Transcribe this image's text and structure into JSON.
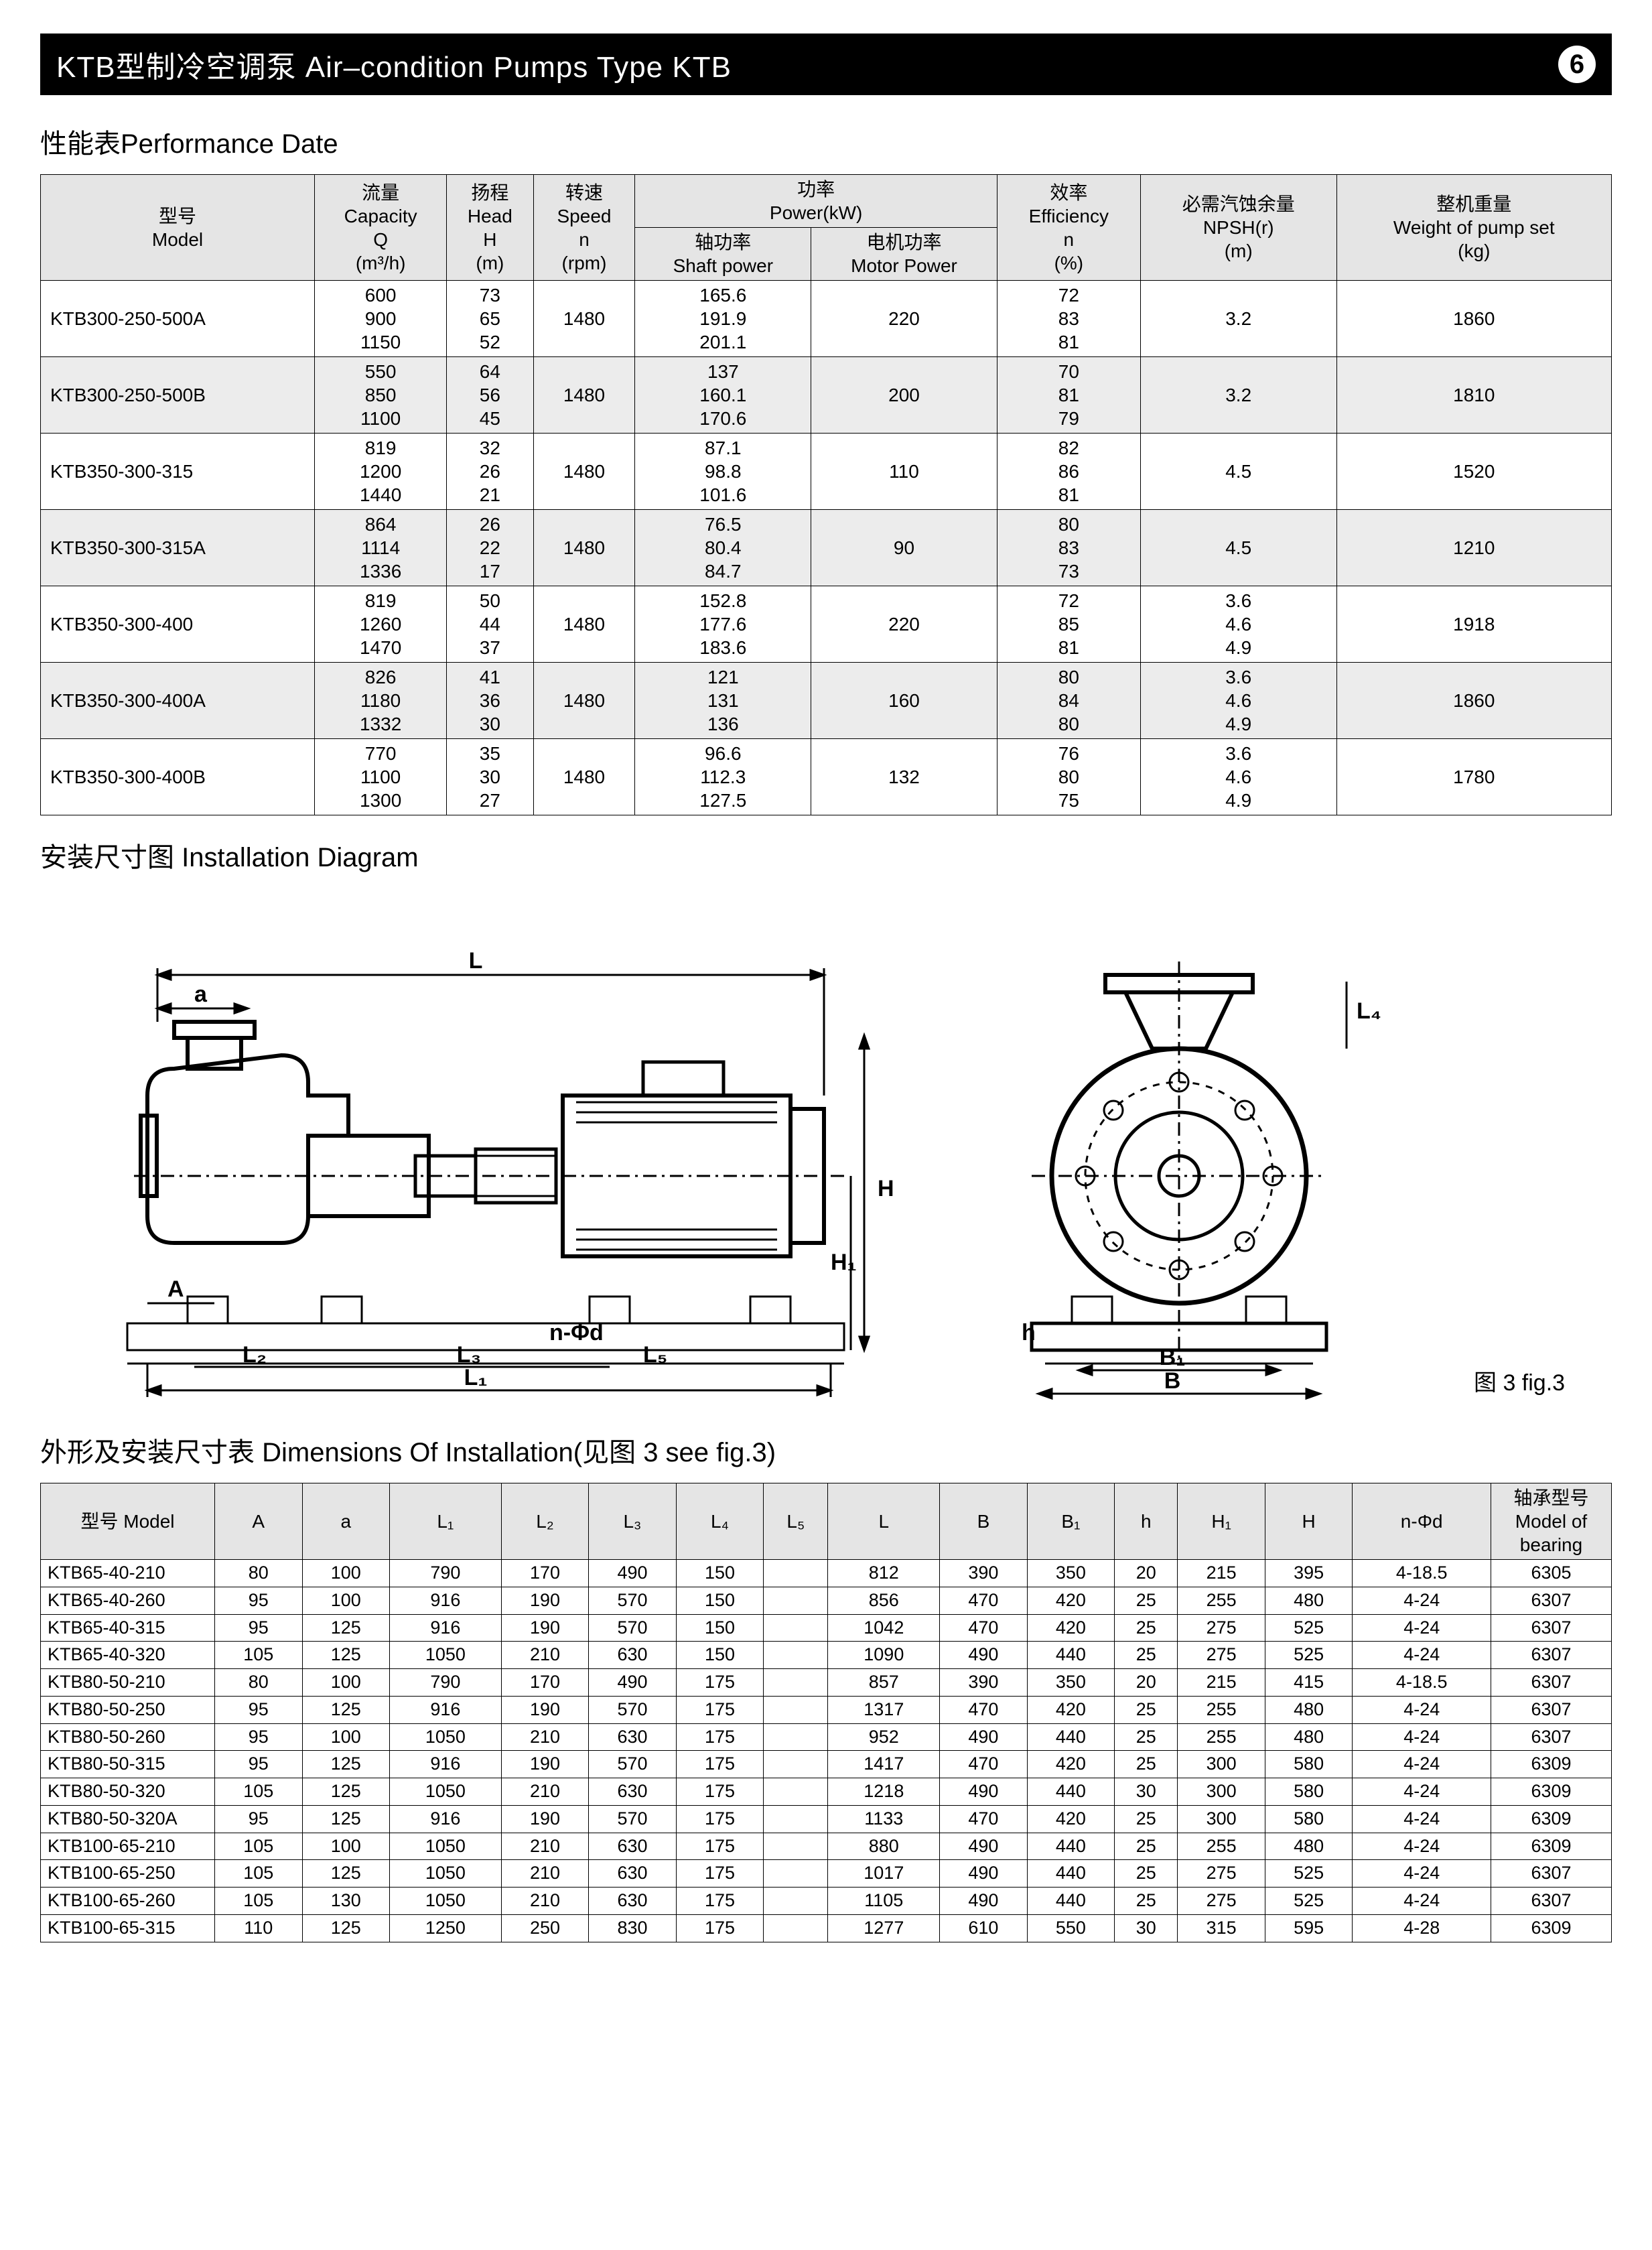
{
  "header": {
    "title": "KTB型制冷空调泵 Air–condition Pumps Type KTB",
    "page_number": "6"
  },
  "sections": {
    "performance_title": "性能表Performance Date",
    "diagram_title": "安装尺寸图 Installation Diagram",
    "dimensions_title": "外形及安装尺寸表 Dimensions Of Installation(见图 3 see fig.3)",
    "fig_caption": "图 3 fig.3"
  },
  "performance_table": {
    "headers": {
      "model": "型号\nModel",
      "capacity": "流量\nCapacity\nQ\n(m³/h)",
      "head": "扬程\nHead\nH\n(m)",
      "speed": "转速\nSpeed\nn\n(rpm)",
      "power": "功率\nPower(kW)",
      "shaft_power": "轴功率\nShaft power",
      "motor_power": "电机功率\nMotor Power",
      "efficiency": "效率\nEfficiency\nn\n(%)",
      "npsh": "必需汽蚀余量\nNPSH(r)\n(m)",
      "weight": "整机重量\nWeight of pump set\n(kg)"
    },
    "rows": [
      {
        "model": "KTB300-250-500A",
        "capacity": "600\n900\n1150",
        "head": "73\n65\n52",
        "speed": "1480",
        "shaft": "165.6\n191.9\n201.1",
        "motor": "220",
        "eff": "72\n83\n81",
        "npsh": "3.2",
        "weight": "1860"
      },
      {
        "model": "KTB300-250-500B",
        "capacity": "550\n850\n1100",
        "head": "64\n56\n45",
        "speed": "1480",
        "shaft": "137\n160.1\n170.6",
        "motor": "200",
        "eff": "70\n81\n79",
        "npsh": "3.2",
        "weight": "1810"
      },
      {
        "model": "KTB350-300-315",
        "capacity": "819\n1200\n1440",
        "head": "32\n26\n21",
        "speed": "1480",
        "shaft": "87.1\n98.8\n101.6",
        "motor": "110",
        "eff": "82\n86\n81",
        "npsh": "4.5",
        "weight": "1520"
      },
      {
        "model": "KTB350-300-315A",
        "capacity": "864\n1114\n1336",
        "head": "26\n22\n17",
        "speed": "1480",
        "shaft": "76.5\n80.4\n84.7",
        "motor": "90",
        "eff": "80\n83\n73",
        "npsh": "4.5",
        "weight": "1210"
      },
      {
        "model": "KTB350-300-400",
        "capacity": "819\n1260\n1470",
        "head": "50\n44\n37",
        "speed": "1480",
        "shaft": "152.8\n177.6\n183.6",
        "motor": "220",
        "eff": "72\n85\n81",
        "npsh": "3.6\n4.6\n4.9",
        "weight": "1918"
      },
      {
        "model": "KTB350-300-400A",
        "capacity": "826\n1180\n1332",
        "head": "41\n36\n30",
        "speed": "1480",
        "shaft": "121\n131\n136",
        "motor": "160",
        "eff": "80\n84\n80",
        "npsh": "3.6\n4.6\n4.9",
        "weight": "1860"
      },
      {
        "model": "KTB350-300-400B",
        "capacity": "770\n1100\n1300",
        "head": "35\n30\n27",
        "speed": "1480",
        "shaft": "96.6\n112.3\n127.5",
        "motor": "132",
        "eff": "76\n80\n75",
        "npsh": "3.6\n4.6\n4.9",
        "weight": "1780"
      }
    ]
  },
  "diagram": {
    "labels": {
      "L": "L",
      "a": "a",
      "A": "A",
      "L1": "L₁",
      "L2": "L₂",
      "L3": "L₃",
      "L4": "L₄",
      "L5": "L₅",
      "H": "H",
      "H1": "H₁",
      "h": "h",
      "B": "B",
      "B1": "B₁",
      "nphid": "n-Φd"
    },
    "stroke": "#000",
    "fill": "none",
    "bg": "#fff"
  },
  "dimensions_table": {
    "headers": {
      "model": "型号\nModel",
      "A": "A",
      "a": "a",
      "L1": "L₁",
      "L2": "L₂",
      "L3": "L₃",
      "L4": "L₄",
      "L5": "L₅",
      "L": "L",
      "B": "B",
      "B1": "B₁",
      "h": "h",
      "H1": "H₁",
      "H": "H",
      "nphid": "n-Φd",
      "bearing": "轴承型号\nModel of\nbearing"
    },
    "rows": [
      {
        "model": "KTB65-40-210",
        "A": "80",
        "a": "100",
        "L1": "790",
        "L2": "170",
        "L3": "490",
        "L4": "150",
        "L5": "",
        "L": "812",
        "B": "390",
        "B1": "350",
        "h": "20",
        "H1": "215",
        "H": "395",
        "nphid": "4-18.5",
        "bearing": "6305"
      },
      {
        "model": "KTB65-40-260",
        "A": "95",
        "a": "100",
        "L1": "916",
        "L2": "190",
        "L3": "570",
        "L4": "150",
        "L5": "",
        "L": "856",
        "B": "470",
        "B1": "420",
        "h": "25",
        "H1": "255",
        "H": "480",
        "nphid": "4-24",
        "bearing": "6307"
      },
      {
        "model": "KTB65-40-315",
        "A": "95",
        "a": "125",
        "L1": "916",
        "L2": "190",
        "L3": "570",
        "L4": "150",
        "L5": "",
        "L": "1042",
        "B": "470",
        "B1": "420",
        "h": "25",
        "H1": "275",
        "H": "525",
        "nphid": "4-24",
        "bearing": "6307"
      },
      {
        "model": "KTB65-40-320",
        "A": "105",
        "a": "125",
        "L1": "1050",
        "L2": "210",
        "L3": "630",
        "L4": "150",
        "L5": "",
        "L": "1090",
        "B": "490",
        "B1": "440",
        "h": "25",
        "H1": "275",
        "H": "525",
        "nphid": "4-24",
        "bearing": "6307"
      },
      {
        "model": "KTB80-50-210",
        "A": "80",
        "a": "100",
        "L1": "790",
        "L2": "170",
        "L3": "490",
        "L4": "175",
        "L5": "",
        "L": "857",
        "B": "390",
        "B1": "350",
        "h": "20",
        "H1": "215",
        "H": "415",
        "nphid": "4-18.5",
        "bearing": "6307"
      },
      {
        "model": "KTB80-50-250",
        "A": "95",
        "a": "125",
        "L1": "916",
        "L2": "190",
        "L3": "570",
        "L4": "175",
        "L5": "",
        "L": "1317",
        "B": "470",
        "B1": "420",
        "h": "25",
        "H1": "255",
        "H": "480",
        "nphid": "4-24",
        "bearing": "6307"
      },
      {
        "model": "KTB80-50-260",
        "A": "95",
        "a": "100",
        "L1": "1050",
        "L2": "210",
        "L3": "630",
        "L4": "175",
        "L5": "",
        "L": "952",
        "B": "490",
        "B1": "440",
        "h": "25",
        "H1": "255",
        "H": "480",
        "nphid": "4-24",
        "bearing": "6307"
      },
      {
        "model": "KTB80-50-315",
        "A": "95",
        "a": "125",
        "L1": "916",
        "L2": "190",
        "L3": "570",
        "L4": "175",
        "L5": "",
        "L": "1417",
        "B": "470",
        "B1": "420",
        "h": "25",
        "H1": "300",
        "H": "580",
        "nphid": "4-24",
        "bearing": "6309"
      },
      {
        "model": "KTB80-50-320",
        "A": "105",
        "a": "125",
        "L1": "1050",
        "L2": "210",
        "L3": "630",
        "L4": "175",
        "L5": "",
        "L": "1218",
        "B": "490",
        "B1": "440",
        "h": "30",
        "H1": "300",
        "H": "580",
        "nphid": "4-24",
        "bearing": "6309"
      },
      {
        "model": "KTB80-50-320A",
        "A": "95",
        "a": "125",
        "L1": "916",
        "L2": "190",
        "L3": "570",
        "L4": "175",
        "L5": "",
        "L": "1133",
        "B": "470",
        "B1": "420",
        "h": "25",
        "H1": "300",
        "H": "580",
        "nphid": "4-24",
        "bearing": "6309"
      },
      {
        "model": "KTB100-65-210",
        "A": "105",
        "a": "100",
        "L1": "1050",
        "L2": "210",
        "L3": "630",
        "L4": "175",
        "L5": "",
        "L": "880",
        "B": "490",
        "B1": "440",
        "h": "25",
        "H1": "255",
        "H": "480",
        "nphid": "4-24",
        "bearing": "6309"
      },
      {
        "model": "KTB100-65-250",
        "A": "105",
        "a": "125",
        "L1": "1050",
        "L2": "210",
        "L3": "630",
        "L4": "175",
        "L5": "",
        "L": "1017",
        "B": "490",
        "B1": "440",
        "h": "25",
        "H1": "275",
        "H": "525",
        "nphid": "4-24",
        "bearing": "6307"
      },
      {
        "model": "KTB100-65-260",
        "A": "105",
        "a": "130",
        "L1": "1050",
        "L2": "210",
        "L3": "630",
        "L4": "175",
        "L5": "",
        "L": "1105",
        "B": "490",
        "B1": "440",
        "h": "25",
        "H1": "275",
        "H": "525",
        "nphid": "4-24",
        "bearing": "6307"
      },
      {
        "model": "KTB100-65-315",
        "A": "110",
        "a": "125",
        "L1": "1250",
        "L2": "250",
        "L3": "830",
        "L4": "175",
        "L5": "",
        "L": "1277",
        "B": "610",
        "B1": "550",
        "h": "30",
        "H1": "315",
        "H": "595",
        "nphid": "4-28",
        "bearing": "6309"
      }
    ]
  }
}
